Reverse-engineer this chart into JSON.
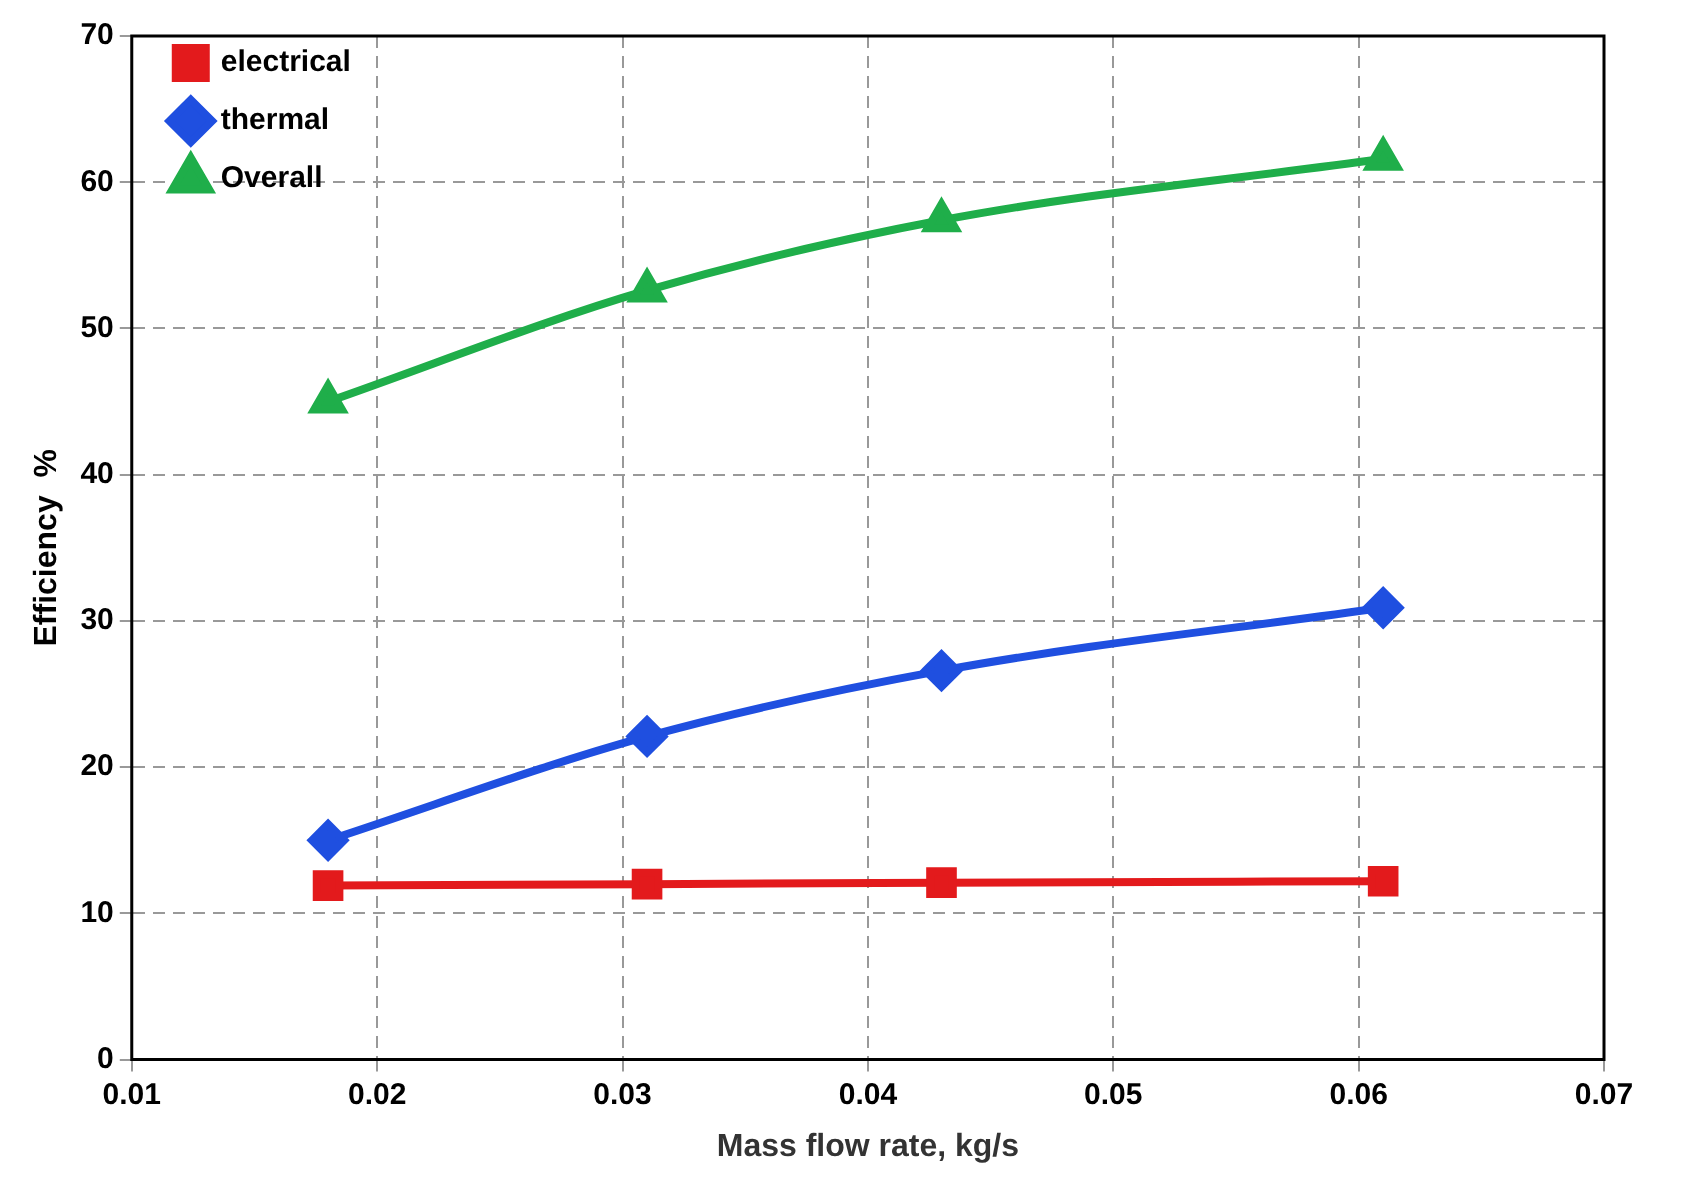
{
  "chart_data": {
    "type": "line",
    "xlabel": "Mass flow rate, kg/s",
    "ylabel": "Efficiency  %",
    "x": [
      0.018,
      0.031,
      0.043,
      0.061
    ],
    "series": [
      {
        "name": "electrical",
        "color": "#e31a1c",
        "marker": "square",
        "values": [
          11.9,
          12.0,
          12.1,
          12.2
        ]
      },
      {
        "name": "thermal",
        "color": "#1f4fe0",
        "marker": "diamond",
        "values": [
          15.0,
          22.1,
          26.6,
          30.9
        ]
      },
      {
        "name": "Overall",
        "color": "#1fae4a",
        "marker": "triangle",
        "values": [
          45.0,
          52.6,
          57.4,
          61.6
        ]
      }
    ],
    "xlim": [
      0.01,
      0.07
    ],
    "xticks": [
      0.01,
      0.02,
      0.03,
      0.04,
      0.05,
      0.06,
      0.07
    ],
    "ylim": [
      0,
      70
    ],
    "yticks": [
      0,
      10,
      20,
      30,
      40,
      50,
      60,
      70
    ],
    "grid": true,
    "legend": "top left",
    "line_style": "solid"
  }
}
